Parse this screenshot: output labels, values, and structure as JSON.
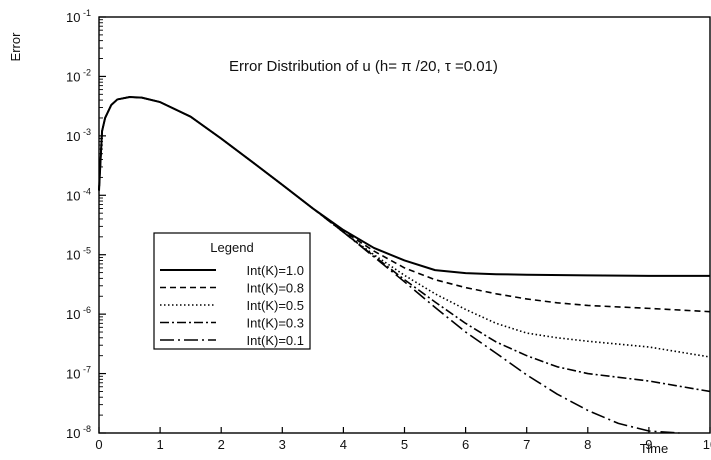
{
  "chart_data": {
    "type": "line",
    "title": "",
    "annotation": "Error Distribution of u  (h= π /20,  τ =0.01)",
    "xlabel": "Time",
    "ylabel": "Error",
    "x_scale": "linear",
    "y_scale": "log",
    "xlim": [
      0,
      10
    ],
    "ylim": [
      1e-08,
      0.1
    ],
    "x_ticks": [
      0,
      1,
      2,
      3,
      4,
      5,
      6,
      7,
      8,
      9,
      10
    ],
    "y_ticks": [
      {
        "value": 1e-08,
        "base": "10",
        "exp": "-8"
      },
      {
        "value": 1e-07,
        "base": "10",
        "exp": "-7"
      },
      {
        "value": 1e-06,
        "base": "10",
        "exp": "-6"
      },
      {
        "value": 1e-05,
        "base": "10",
        "exp": "-5"
      },
      {
        "value": 0.0001,
        "base": "10",
        "exp": "-4"
      },
      {
        "value": 0.001,
        "base": "10",
        "exp": "-3"
      },
      {
        "value": 0.01,
        "base": "10",
        "exp": "-2"
      },
      {
        "value": 0.1,
        "base": "10",
        "exp": "-1"
      }
    ],
    "legend": {
      "title": "Legend",
      "position": "center-left"
    },
    "grid": false,
    "series": [
      {
        "name": "Int(K)=1.0",
        "dash": "solid",
        "color": "#000000",
        "x": [
          0,
          0.05,
          0.1,
          0.2,
          0.3,
          0.5,
          0.7,
          1,
          1.5,
          2,
          2.5,
          3,
          3.5,
          4,
          4.5,
          5,
          5.5,
          6,
          6.5,
          7,
          8,
          9,
          10
        ],
        "y": [
          0.00012,
          0.0012,
          0.002,
          0.0033,
          0.0041,
          0.0045,
          0.0044,
          0.0037,
          0.0021,
          0.0009,
          0.00037,
          0.00015,
          6e-05,
          2.6e-05,
          1.3e-05,
          8e-06,
          5.5e-06,
          4.9e-06,
          4.7e-06,
          4.6e-06,
          4.5e-06,
          4.4e-06,
          4.4e-06
        ]
      },
      {
        "name": "Int(K)=0.8",
        "dash": "dashed",
        "color": "#000000",
        "x": [
          0,
          0.05,
          0.1,
          0.2,
          0.3,
          0.5,
          0.7,
          1,
          1.5,
          2,
          2.5,
          3,
          3.5,
          4,
          4.5,
          5,
          5.5,
          6,
          6.5,
          7,
          7.5,
          8,
          9,
          10
        ],
        "y": [
          0.00012,
          0.0012,
          0.002,
          0.0033,
          0.0041,
          0.0045,
          0.0044,
          0.0037,
          0.0021,
          0.0009,
          0.00037,
          0.00015,
          6e-05,
          2.5e-05,
          1.15e-05,
          6e-06,
          3.8e-06,
          2.8e-06,
          2.2e-06,
          1.8e-06,
          1.55e-06,
          1.4e-06,
          1.25e-06,
          1.1e-06
        ]
      },
      {
        "name": "Int(K)=0.5",
        "dash": "dotted",
        "color": "#000000",
        "x": [
          0,
          0.05,
          0.1,
          0.2,
          0.3,
          0.5,
          0.7,
          1,
          1.5,
          2,
          2.5,
          3,
          3.5,
          4,
          4.5,
          5,
          5.5,
          6,
          6.5,
          7,
          7.5,
          8,
          9,
          10
        ],
        "y": [
          0.00012,
          0.0012,
          0.002,
          0.0033,
          0.0041,
          0.0045,
          0.0044,
          0.0037,
          0.0021,
          0.0009,
          0.00037,
          0.00015,
          6e-05,
          2.4e-05,
          1e-05,
          4.5e-06,
          2.2e-06,
          1.2e-06,
          7e-07,
          4.8e-07,
          4e-07,
          3.5e-07,
          2.8e-07,
          1.9e-07
        ]
      },
      {
        "name": "Int(K)=0.3",
        "dash": "dashdot",
        "color": "#000000",
        "x": [
          0,
          0.05,
          0.1,
          0.2,
          0.3,
          0.5,
          0.7,
          1,
          1.5,
          2,
          2.5,
          3,
          3.5,
          4,
          4.5,
          5,
          5.5,
          6,
          6.5,
          7,
          7.5,
          8,
          9,
          10
        ],
        "y": [
          0.00012,
          0.0012,
          0.002,
          0.0033,
          0.0041,
          0.0045,
          0.0044,
          0.0037,
          0.0021,
          0.0009,
          0.00037,
          0.00015,
          6e-05,
          2.4e-05,
          9.5e-06,
          3.8e-06,
          1.6e-06,
          7e-07,
          3.4e-07,
          2e-07,
          1.3e-07,
          1e-07,
          7.5e-08,
          5e-08
        ]
      },
      {
        "name": "Int(K)=0.1",
        "dash": "dashdotlong",
        "color": "#000000",
        "x": [
          0,
          0.05,
          0.1,
          0.2,
          0.3,
          0.5,
          0.7,
          1,
          1.5,
          2,
          2.5,
          3,
          3.5,
          4,
          4.5,
          5,
          5.5,
          6,
          6.5,
          7,
          7.5,
          8,
          8.5,
          9,
          9.5
        ],
        "y": [
          0.00012,
          0.0012,
          0.002,
          0.0033,
          0.0041,
          0.0045,
          0.0044,
          0.0037,
          0.0021,
          0.0009,
          0.00037,
          0.00015,
          6e-05,
          2.4e-05,
          9.2e-06,
          3.5e-06,
          1.3e-06,
          5e-07,
          2.2e-07,
          9.5e-08,
          4.5e-08,
          2.4e-08,
          1.45e-08,
          1.08e-08,
          1e-08
        ]
      }
    ]
  }
}
